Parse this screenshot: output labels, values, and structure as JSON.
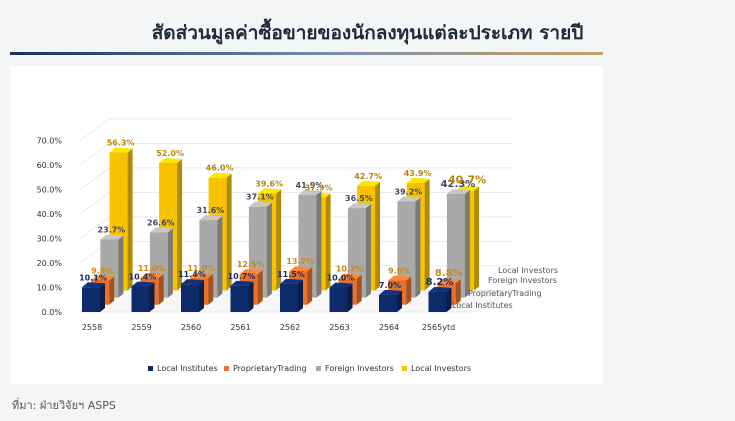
{
  "page": {
    "title": "สัดส่วนมูลค่าซื้อขายของนักลงทุนแต่ละประเภท รายปี",
    "source": "ที่มา:  ฝ่ายวิจัยฯ ASPS"
  },
  "chart_data": {
    "type": "bar",
    "style": "3d-grouped",
    "categories": [
      "2558",
      "2559",
      "2560",
      "2561",
      "2562",
      "2563",
      "2564",
      "2565ytd"
    ],
    "series": [
      {
        "name": "Local Institutes",
        "color": "#0d2a6b",
        "label_color": "#1a2f5a",
        "values": [
          10.1,
          10.4,
          11.4,
          10.7,
          11.5,
          10.0,
          7.0,
          8.2
        ],
        "labels": [
          "10.1%",
          "10.4%",
          "11.4%",
          "10.7%",
          "11.5%",
          "10.0%",
          "7.0%",
          "8.2%"
        ]
      },
      {
        "name": "ProprietaryTrading",
        "color": "#e8722a",
        "label_color": "#c98a1c",
        "values": [
          9.9,
          11.0,
          11.0,
          12.5,
          13.7,
          10.7,
          9.9,
          8.8
        ],
        "labels": [
          "9.9%",
          "11.0%",
          "11.0%",
          "12.5%",
          "13.7%",
          "10.7%",
          "9.9%",
          "8.8%"
        ]
      },
      {
        "name": "Foreign Investors",
        "color": "#a9a9a9",
        "label_color": "#3c4a66",
        "values": [
          23.7,
          26.6,
          31.6,
          37.1,
          41.9,
          36.5,
          39.2,
          42.3
        ],
        "labels": [
          "23.7%",
          "26.6%",
          "31.6%",
          "37.1%",
          "41.9%",
          "36.5%",
          "39.2%",
          "42.3%"
        ]
      },
      {
        "name": "Local Investors",
        "color": "#f7c300",
        "label_color": "#b8860b",
        "values": [
          56.3,
          52.0,
          46.0,
          39.6,
          37.9,
          42.7,
          43.9,
          40.7
        ],
        "labels": [
          "56.3%",
          "52.0%",
          "46.0%",
          "39.6%",
          "37.9%",
          "42.7%",
          "43.9%",
          "40.7%"
        ]
      }
    ],
    "yticks": [
      "0.0%",
      "10.0%",
      "20.0%",
      "30.0%",
      "40.0%",
      "50.0%",
      "60.0%",
      "70.0%"
    ],
    "ylim": [
      0,
      70
    ],
    "depth_labels": [
      "Local Investors",
      "Foreign Investors",
      "ProprietaryTrading",
      "Local Institutes"
    ],
    "legend_position": "bottom",
    "grid": true
  }
}
